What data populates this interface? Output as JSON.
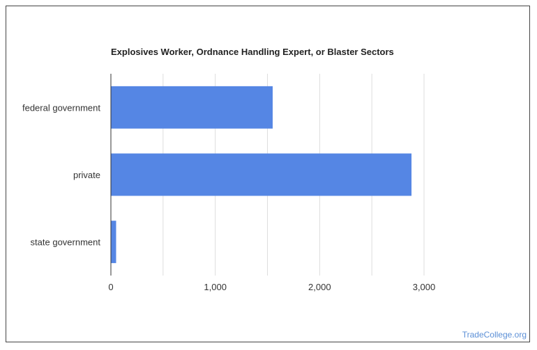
{
  "chart_data": {
    "type": "bar",
    "orientation": "horizontal",
    "title": "Explosives Worker, Ordnance Handling Expert, or Blaster Sectors",
    "xlabel": "",
    "ylabel": "",
    "categories": [
      "federal government",
      "private",
      "state government"
    ],
    "values": [
      1550,
      2880,
      50
    ],
    "xlim": [
      0,
      3000
    ],
    "x_ticks": [
      0,
      1000,
      2000,
      3000
    ],
    "x_tick_labels": [
      "0",
      "1,000",
      "2,000",
      "3,000"
    ],
    "grid": true,
    "bar_color": "#5586e4"
  },
  "watermark": "TradeCollege.org"
}
